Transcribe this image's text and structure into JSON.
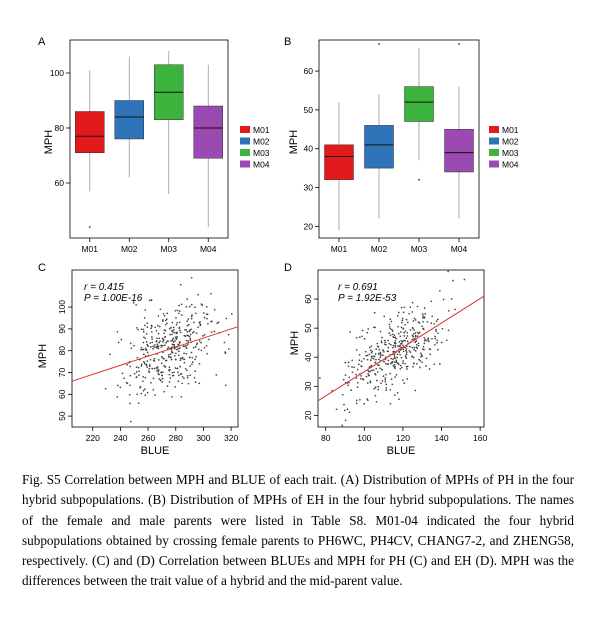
{
  "chart_data": [
    {
      "panel": "A",
      "type": "box",
      "ylabel": "MPH",
      "xlabel": "",
      "categories": [
        "M01",
        "M02",
        "M03",
        "M04"
      ],
      "colors": [
        "#e31a1c",
        "#2f73b8",
        "#3cb33c",
        "#9a4ab0"
      ],
      "legend": [
        "M01",
        "M02",
        "M03",
        "M04"
      ],
      "legend_position": "right",
      "yticks": [
        60,
        80,
        100
      ],
      "ylim": [
        40,
        112
      ],
      "boxes": [
        {
          "min": 57,
          "q1": 71,
          "median": 77,
          "q3": 86,
          "max": 101,
          "outliers": [
            44
          ]
        },
        {
          "min": 62,
          "q1": 76,
          "median": 84,
          "q3": 90,
          "max": 106,
          "outliers": []
        },
        {
          "min": 56,
          "q1": 83,
          "median": 93,
          "q3": 103,
          "max": 108,
          "outliers": []
        },
        {
          "min": 44,
          "q1": 69,
          "median": 80,
          "q3": 88,
          "max": 103,
          "outliers": []
        }
      ]
    },
    {
      "panel": "B",
      "type": "box",
      "ylabel": "MPH",
      "xlabel": "",
      "categories": [
        "M01",
        "M02",
        "M03",
        "M04"
      ],
      "colors": [
        "#e31a1c",
        "#2f73b8",
        "#3cb33c",
        "#9a4ab0"
      ],
      "legend": [
        "M01",
        "M02",
        "M03",
        "M04"
      ],
      "legend_position": "right",
      "yticks": [
        20,
        30,
        40,
        50,
        60
      ],
      "ylim": [
        17,
        68
      ],
      "boxes": [
        {
          "min": 19,
          "q1": 32,
          "median": 38,
          "q3": 41,
          "max": 52,
          "outliers": []
        },
        {
          "min": 22,
          "q1": 35,
          "median": 41,
          "q3": 46,
          "max": 54,
          "outliers": [
            67
          ]
        },
        {
          "min": 37,
          "q1": 47,
          "median": 52,
          "q3": 56,
          "max": 66,
          "outliers": [
            32
          ]
        },
        {
          "min": 22,
          "q1": 34,
          "median": 39,
          "q3": 45,
          "max": 56,
          "outliers": [
            67
          ]
        }
      ]
    },
    {
      "panel": "C",
      "type": "scatter",
      "xlabel": "BLUE",
      "ylabel": "MPH",
      "xlim": [
        205,
        325
      ],
      "ylim": [
        45,
        117
      ],
      "xticks": [
        220,
        240,
        260,
        280,
        300,
        320
      ],
      "yticks": [
        50,
        60,
        70,
        80,
        90,
        100
      ],
      "r_text": "r = 0.415",
      "p_text": "P = 1.00E-16",
      "trend": {
        "x0": 205,
        "y0": 66,
        "x1": 325,
        "y1": 91
      },
      "n_points": 420,
      "x_mean": 276,
      "x_sd": 17,
      "y_sd_resid": 10,
      "seed": 11
    },
    {
      "panel": "D",
      "type": "scatter",
      "xlabel": "BLUE",
      "ylabel": "MPH",
      "xlim": [
        76,
        162
      ],
      "ylim": [
        16,
        70
      ],
      "xticks": [
        80,
        100,
        120,
        140,
        160
      ],
      "yticks": [
        20,
        30,
        40,
        50,
        60
      ],
      "r_text": "r = 0.691",
      "p_text": "P = 1.92E-53",
      "trend": {
        "x0": 76,
        "y0": 25,
        "x1": 162,
        "y1": 61
      },
      "n_points": 420,
      "x_mean": 115,
      "x_sd": 13,
      "y_sd_resid": 6.5,
      "seed": 29
    }
  ],
  "panel_labels": [
    "A",
    "B",
    "C",
    "D"
  ],
  "caption": "Fig. S5 Correlation between MPH and BLUE of each trait. (A) Distribution of MPHs of PH in the four hybrid subpopulations. (B) Distribution of MPHs of EH in the four hybrid subpopulations. The names of the female and male parents were listed in Table S8. M01-04 indicated the four hybrid subpopulations obtained by crossing female parents to PH6WC, PH4CV, CHANG7-2, and ZHENG58, respectively. (C) and (D) Correlation between BLUEs and MPH for PH (C) and EH (D). MPH was the differences between the trait value of a hybrid and the mid-parent value."
}
